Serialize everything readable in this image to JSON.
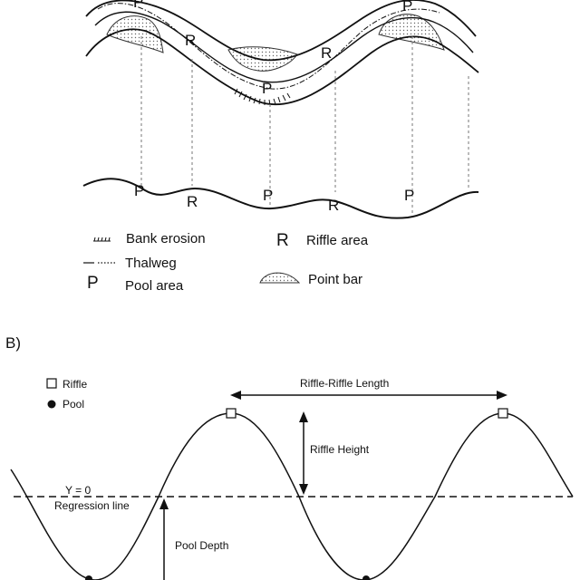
{
  "panel_a": {
    "plan_labels": [
      "P",
      "R",
      "P",
      "R",
      "P"
    ],
    "profile_labels": [
      "P",
      "R",
      "P",
      "R",
      "P"
    ],
    "legend": {
      "bank_erosion": "Bank erosion",
      "riffle_symbol": "R",
      "riffle_area": "Riffle area",
      "thalweg": "Thalweg",
      "pool_symbol": "P",
      "pool_area": "Pool area",
      "point_bar": "Point bar"
    }
  },
  "panel_b": {
    "label": "B)",
    "legend": {
      "riffle": "Riffle",
      "pool": "Pool"
    },
    "riffle_riffle_length": "Riffle-Riffle Length",
    "riffle_height": "Riffle Height",
    "y_zero": "Y = 0",
    "regression_line": "Regression line",
    "pool_depth": "Pool Depth"
  }
}
